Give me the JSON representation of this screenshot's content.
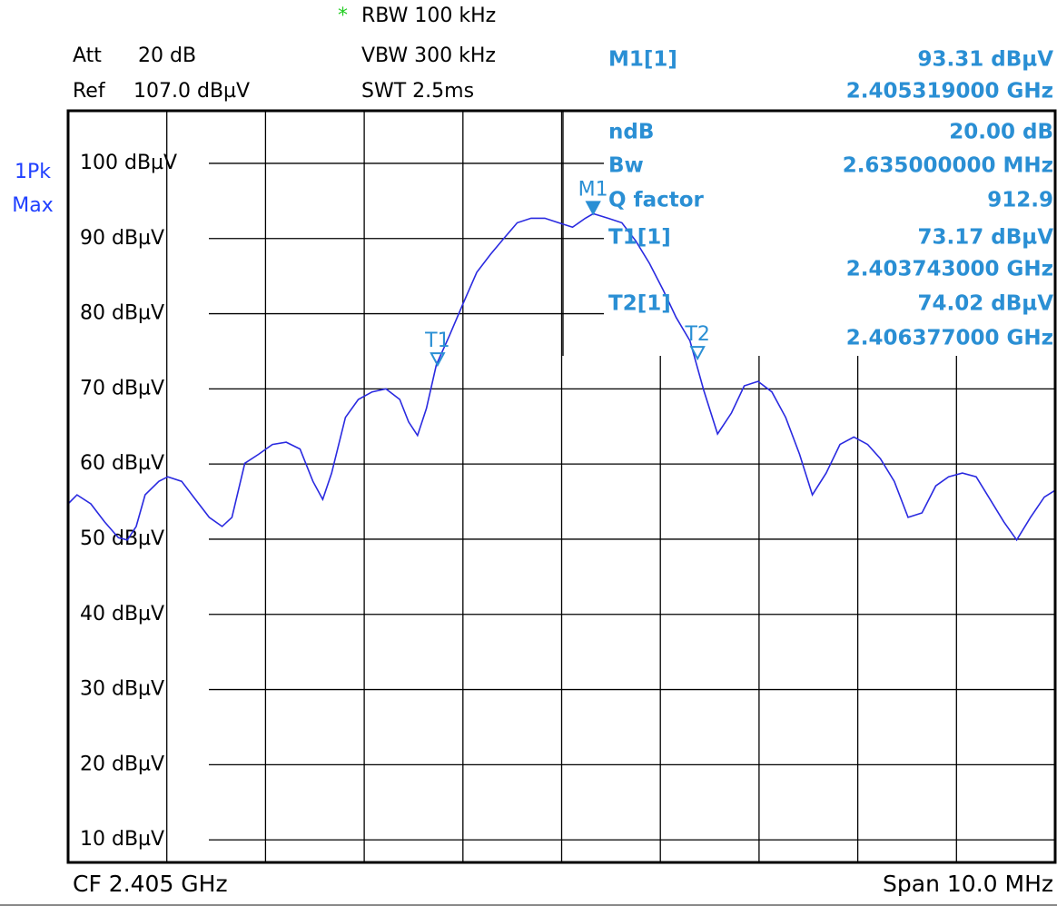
{
  "header": {
    "rbw_star": "*",
    "rbw": "RBW 100 kHz",
    "att_label": "Att",
    "att_value": "20 dB",
    "vbw": "VBW 300 kHz",
    "ref_label": "Ref",
    "ref_value": "107.0 dBµV",
    "swt": "SWT 2.5ms",
    "trace_mode_1": "1Pk",
    "trace_mode_2": "Max"
  },
  "ndb_table": {
    "ndb_label": "ndB",
    "ndb_value": "20.00 dB",
    "bw_label": "Bw",
    "bw_value": "2.635000000 MHz",
    "q_label": "Q factor",
    "q_value": "912.9"
  },
  "footer": {
    "cf": "CF 2.405 GHz",
    "span": "Span 10.0 MHz"
  },
  "chart_data": {
    "type": "line",
    "xlim": [
      2.4,
      2.41
    ],
    "ylim": [
      7,
      107
    ],
    "yticks": [
      {
        "value": 100,
        "label": "100 dBµV"
      },
      {
        "value": 90,
        "label": "90 dBµV"
      },
      {
        "value": 80,
        "label": "80 dBµV"
      },
      {
        "value": 70,
        "label": "70 dBµV"
      },
      {
        "value": 60,
        "label": "60 dBµV"
      },
      {
        "value": 50,
        "label": "50 dBµV"
      },
      {
        "value": 40,
        "label": "40 dBµV"
      },
      {
        "value": 30,
        "label": "30 dBµV"
      },
      {
        "value": 20,
        "label": "20 dBµV"
      },
      {
        "value": 10,
        "label": "10 dBµV"
      }
    ],
    "grid": true,
    "x": [
      2.4,
      2.40009,
      2.40023,
      2.40037,
      2.40051,
      2.4006,
      2.40069,
      2.40078,
      2.40092,
      2.40101,
      2.40115,
      2.40129,
      2.40143,
      2.40156,
      2.40166,
      2.40179,
      2.40193,
      2.40207,
      2.40221,
      2.40235,
      2.40248,
      2.40258,
      2.40267,
      2.40281,
      2.40294,
      2.40308,
      2.40322,
      2.40336,
      2.40345,
      2.40354,
      2.40363,
      2.40373,
      2.40386,
      2.404,
      2.40414,
      2.40428,
      2.40442,
      2.40455,
      2.40469,
      2.40483,
      2.40497,
      2.40511,
      2.40524,
      2.40532,
      2.40547,
      2.40561,
      2.40575,
      2.40589,
      2.40603,
      2.40616,
      2.4063,
      2.40644,
      2.40658,
      2.40672,
      2.40685,
      2.40699,
      2.40713,
      2.40727,
      2.40741,
      2.40754,
      2.40768,
      2.40782,
      2.40796,
      2.4081,
      2.40823,
      2.40837,
      2.40851,
      2.40865,
      2.40879,
      2.40892,
      2.40906,
      2.4092,
      2.40934,
      2.40948,
      2.40961,
      2.40975,
      2.40989,
      2.41
    ],
    "series": [
      {
        "name": "1Pk Max",
        "color": "#2a2ae0",
        "values": [
          54.7,
          55.9,
          54.7,
          52.3,
          50.2,
          49.9,
          51.7,
          55.9,
          57.7,
          58.3,
          57.7,
          55.3,
          52.9,
          51.7,
          52.9,
          60.1,
          61.3,
          62.6,
          62.9,
          62.0,
          57.7,
          55.3,
          58.8,
          66.2,
          68.6,
          69.6,
          70.0,
          68.6,
          65.6,
          63.8,
          67.4,
          73.2,
          77.0,
          81.3,
          85.5,
          87.9,
          90.1,
          92.1,
          92.7,
          92.7,
          92.1,
          91.5,
          92.7,
          93.3,
          92.7,
          92.1,
          89.7,
          86.7,
          83.1,
          79.5,
          76.4,
          69.8,
          64.0,
          66.8,
          70.4,
          71.0,
          69.6,
          66.2,
          61.3,
          55.9,
          58.8,
          62.6,
          63.6,
          62.6,
          60.7,
          57.7,
          52.9,
          53.5,
          57.1,
          58.3,
          58.8,
          58.3,
          55.3,
          52.3,
          49.9,
          52.9,
          55.6,
          56.5
        ]
      }
    ],
    "markers": [
      {
        "label": "M1",
        "table_label": "M1[1]",
        "x": 2.405319,
        "x_label": "2.405319000 GHz",
        "value": 93.31,
        "value_label": "93.31 dBµV",
        "filled": true
      },
      {
        "label": "T1",
        "table_label": "T1[1]",
        "x": 2.403743,
        "x_label": "2.403743000 GHz",
        "value": 73.17,
        "value_label": "73.17 dBµV",
        "filled": false
      },
      {
        "label": "T2",
        "table_label": "T2[1]",
        "x": 2.406377,
        "x_label": "2.406377000 GHz",
        "value": 74.02,
        "value_label": "74.02 dBµV",
        "filled": false
      }
    ],
    "marker_color": "#2a8fd4"
  }
}
